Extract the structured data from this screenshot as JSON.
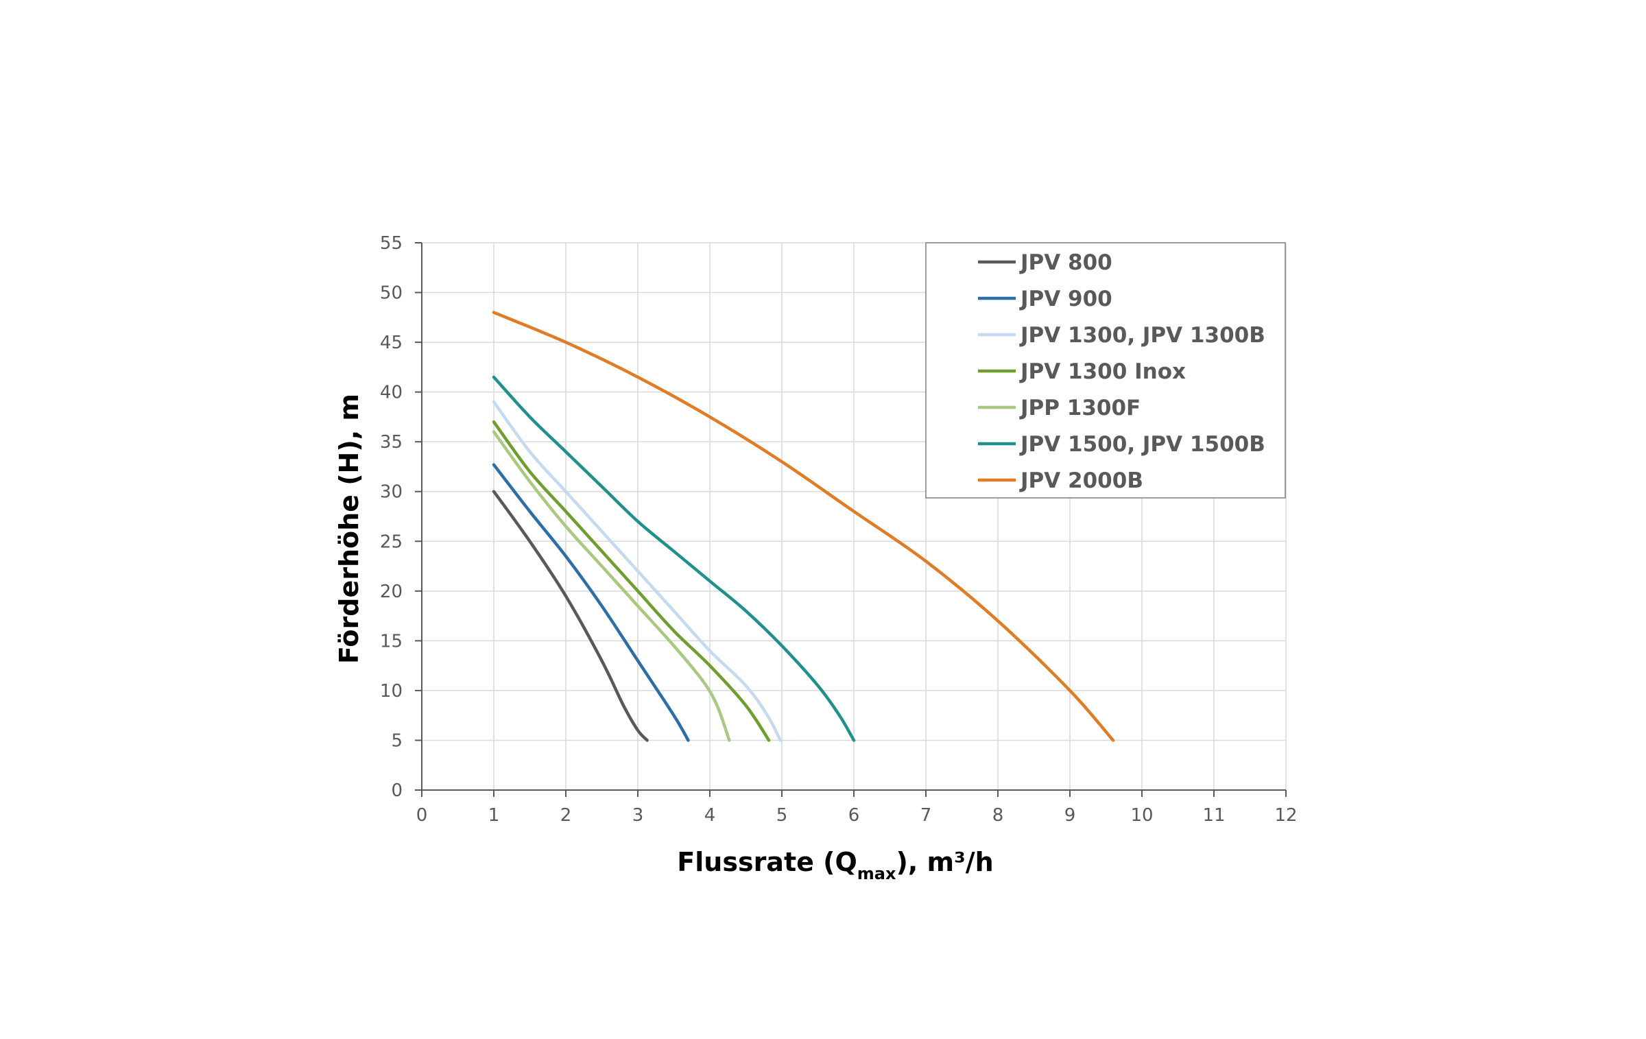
{
  "chart_data": {
    "type": "line",
    "title": "",
    "xlabel": {
      "main": "Flussrate (Q",
      "sub": "max",
      "rest": "), m³/h"
    },
    "ylabel": "Förderhöhe (H), m",
    "xlim": [
      0,
      12
    ],
    "ylim": [
      0,
      55
    ],
    "xticks": [
      "0",
      "1",
      "2",
      "3",
      "4",
      "5",
      "6",
      "7",
      "8",
      "9",
      "10",
      "11",
      "12"
    ],
    "yticks": [
      "0",
      "5",
      "10",
      "15",
      "20",
      "25",
      "30",
      "35",
      "40",
      "45",
      "50",
      "55"
    ],
    "grid": true,
    "legend_position": "top-right",
    "series": [
      {
        "name": "JPV 800",
        "color": "#595959",
        "points": [
          [
            1,
            30
          ],
          [
            1.5,
            25
          ],
          [
            2,
            19.5
          ],
          [
            2.5,
            13
          ],
          [
            2.8,
            8.5
          ],
          [
            3,
            6
          ],
          [
            3.13,
            5
          ]
        ]
      },
      {
        "name": "JPV 900",
        "color": "#2e6ea6",
        "points": [
          [
            1,
            32.7
          ],
          [
            1.5,
            28
          ],
          [
            2,
            23.5
          ],
          [
            2.5,
            18.5
          ],
          [
            3,
            13
          ],
          [
            3.5,
            7.5
          ],
          [
            3.7,
            5
          ]
        ]
      },
      {
        "name": "JPV 1300, JPV 1300B",
        "color": "#c6d9ef",
        "points": [
          [
            1,
            39
          ],
          [
            1.5,
            34
          ],
          [
            2,
            30
          ],
          [
            2.5,
            26
          ],
          [
            3,
            22
          ],
          [
            3.5,
            18
          ],
          [
            4,
            14
          ],
          [
            4.5,
            10.5
          ],
          [
            4.8,
            7.5
          ],
          [
            4.98,
            5
          ]
        ]
      },
      {
        "name": "JPV 1300 Inox",
        "color": "#6f9e2f",
        "points": [
          [
            1,
            37
          ],
          [
            1.5,
            32
          ],
          [
            2,
            28
          ],
          [
            2.5,
            24
          ],
          [
            3,
            20
          ],
          [
            3.5,
            16
          ],
          [
            4,
            12.5
          ],
          [
            4.5,
            8.5
          ],
          [
            4.82,
            5
          ]
        ]
      },
      {
        "name": "JPP 1300F",
        "color": "#a8c97f",
        "points": [
          [
            1,
            36
          ],
          [
            1.5,
            31
          ],
          [
            2,
            26.5
          ],
          [
            2.5,
            22.5
          ],
          [
            3,
            18.5
          ],
          [
            3.5,
            14.5
          ],
          [
            3.9,
            11
          ],
          [
            4.1,
            8.5
          ],
          [
            4.27,
            5
          ]
        ]
      },
      {
        "name": "JPV 1500, JPV 1500B",
        "color": "#21908c",
        "points": [
          [
            1,
            41.5
          ],
          [
            1.5,
            37.5
          ],
          [
            2,
            34
          ],
          [
            2.5,
            30.5
          ],
          [
            3,
            27
          ],
          [
            3.5,
            24
          ],
          [
            4,
            21
          ],
          [
            4.5,
            18
          ],
          [
            5,
            14.5
          ],
          [
            5.5,
            10.5
          ],
          [
            5.8,
            7.5
          ],
          [
            6,
            5
          ]
        ]
      },
      {
        "name": "JPV 2000B",
        "color": "#e07b26",
        "points": [
          [
            1,
            48
          ],
          [
            2,
            45
          ],
          [
            3,
            41.5
          ],
          [
            4,
            37.5
          ],
          [
            5,
            33
          ],
          [
            6,
            28
          ],
          [
            7,
            23
          ],
          [
            8,
            17
          ],
          [
            9,
            10
          ],
          [
            9.6,
            5
          ]
        ]
      }
    ]
  }
}
